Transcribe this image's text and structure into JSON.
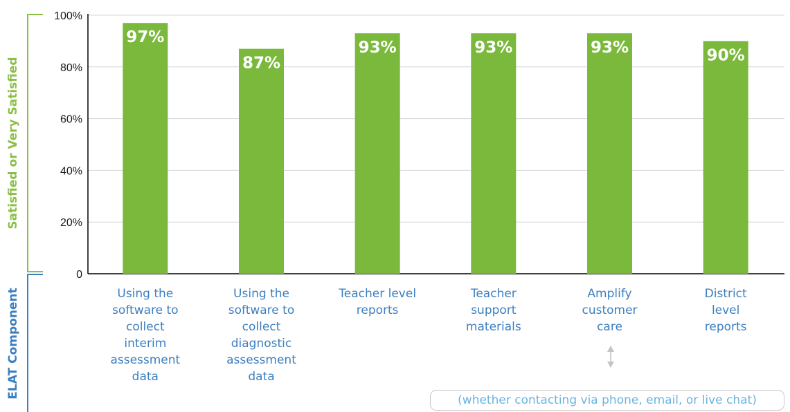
{
  "chart_data": {
    "type": "bar",
    "categories": [
      "Using the software to collect interim assessment data",
      "Using the software to collect diagnostic assessment data",
      "Teacher level reports",
      "Teacher support materials",
      "Amplify customer care",
      "District level reports"
    ],
    "category_lines": [
      [
        "Using the",
        "software to",
        "collect",
        "interim",
        "assessment",
        "data"
      ],
      [
        "Using the",
        "software to",
        "collect",
        "diagnostic",
        "assessment",
        "data"
      ],
      [
        "Teacher level",
        "reports"
      ],
      [
        "Teacher",
        "support",
        "materials"
      ],
      [
        "Amplify",
        "customer",
        "care"
      ],
      [
        "District",
        "level",
        "reports"
      ]
    ],
    "values": [
      97,
      87,
      93,
      93,
      93,
      90
    ],
    "value_labels": [
      "97%",
      "87%",
      "93%",
      "93%",
      "93%",
      "90%"
    ],
    "ylabel": "Satisfied or Very Satisfied",
    "xlabel": "ELAT Component",
    "ylim": [
      0,
      100
    ],
    "yticks": [
      {
        "value": 0,
        "label": "0"
      },
      {
        "value": 20,
        "label": "20%"
      },
      {
        "value": 40,
        "label": "40%"
      },
      {
        "value": 60,
        "label": "60%"
      },
      {
        "value": 80,
        "label": "80%"
      },
      {
        "value": 100,
        "label": "100%"
      }
    ],
    "grid": true,
    "annotation": "(whether contacting via phone, email, or live chat)",
    "colors": {
      "bar": "#7ab93c",
      "ylabel": "#8bbf45",
      "xlabel": "#3d7fbf",
      "category": "#3d7fbf",
      "annotation": "#6ab4e0",
      "grid": "#d4d4d4"
    }
  }
}
